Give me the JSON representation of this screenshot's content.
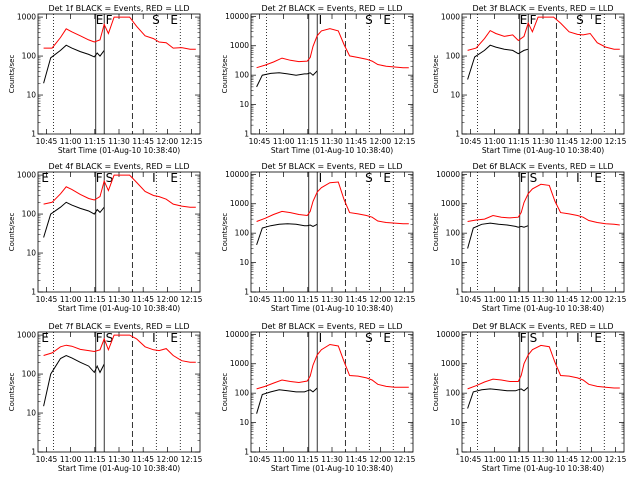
{
  "chart_data": [
    {
      "type": "line",
      "title": "Det 1f BLACK = Events, RED = LLD",
      "xlabel": "Start Time (01-Aug-10 10:38:40)",
      "ylabel": "Counts/sec",
      "xticks": [
        "10:45",
        "11:00",
        "11:15",
        "11:30",
        "11:45",
        "12:00",
        "12:15"
      ],
      "yticks": [
        "1",
        "10",
        "100",
        "1000"
      ],
      "ylim": [
        1,
        1200
      ],
      "yscale": "log",
      "markers": [
        "E",
        "F",
        "S",
        "E"
      ],
      "series": [
        {
          "name": "LLD",
          "color": "#ff0000",
          "x": [
            0.2,
            0.5,
            0.8,
            1.0,
            1.2,
            1.5,
            1.8,
            2.0,
            2.2,
            2.35,
            2.5,
            2.7,
            2.95,
            3.25,
            3.5,
            3.8,
            4.1,
            4.3,
            4.55,
            4.8,
            5.1,
            5.4,
            5.6
          ],
          "y": [
            160,
            160,
            300,
            500,
            420,
            330,
            260,
            230,
            260,
            650,
            380,
            1000,
            1000,
            1000,
            580,
            330,
            280,
            230,
            220,
            160,
            165,
            150,
            150
          ]
        },
        {
          "name": "Events",
          "color": "#000000",
          "x": [
            0.2,
            0.45,
            0.8,
            1.0,
            1.2,
            1.5,
            1.8,
            2.0,
            2.1,
            2.2,
            2.35
          ],
          "y": [
            20,
            90,
            140,
            190,
            160,
            130,
            110,
            95,
            120,
            100,
            140
          ]
        }
      ]
    },
    {
      "type": "line",
      "title": "Det 2f BLACK = Events, RED = LLD",
      "xlabel": "Start Time (01-Aug-10 10:38:40)",
      "ylabel": "Counts/sec",
      "xticks": [
        "10:45",
        "11:00",
        "11:15",
        "11:30",
        "11:45",
        "12:00",
        "12:15"
      ],
      "yticks": [
        "1",
        "10",
        "100",
        "1000",
        "10000"
      ],
      "ylim": [
        1,
        12000
      ],
      "yscale": "log",
      "markers": [
        "I",
        "S",
        "E"
      ],
      "series": [
        {
          "name": "LLD",
          "color": "#ff0000",
          "x": [
            0.2,
            0.5,
            0.8,
            1.1,
            1.4,
            1.7,
            2.0,
            2.1,
            2.2,
            2.35,
            2.5,
            2.8,
            3.1,
            3.3,
            3.5,
            3.8,
            4.1,
            4.3,
            4.5,
            4.8,
            5.1,
            5.4,
            5.6
          ],
          "y": [
            180,
            220,
            280,
            380,
            320,
            290,
            300,
            400,
            950,
            2200,
            3200,
            3800,
            3200,
            1100,
            450,
            400,
            350,
            300,
            230,
            200,
            190,
            180,
            180
          ]
        },
        {
          "name": "Events",
          "color": "#000000",
          "x": [
            0.2,
            0.4,
            0.7,
            1.0,
            1.3,
            1.6,
            1.9,
            2.0,
            2.1,
            2.2,
            2.35
          ],
          "y": [
            40,
            100,
            115,
            120,
            110,
            100,
            110,
            110,
            120,
            100,
            140
          ]
        }
      ]
    },
    {
      "type": "line",
      "title": "Det 3f BLACK = Events, RED = LLD",
      "xlabel": "Start Time (01-Aug-10 10:38:40)",
      "ylabel": "Counts/sec",
      "xticks": [
        "10:45",
        "11:00",
        "11:15",
        "11:30",
        "11:45",
        "12:00",
        "12:15"
      ],
      "yticks": [
        "1",
        "10",
        "100",
        "1000"
      ],
      "ylim": [
        1,
        1200
      ],
      "yscale": "log",
      "markers": [
        "E",
        "F",
        "S",
        "E"
      ],
      "series": [
        {
          "name": "LLD",
          "color": "#ff0000",
          "x": [
            0.2,
            0.5,
            0.8,
            1.0,
            1.2,
            1.5,
            1.8,
            2.0,
            2.2,
            2.35,
            2.5,
            2.7,
            2.95,
            3.25,
            3.5,
            3.8,
            4.1,
            4.3,
            4.55,
            4.8,
            5.1,
            5.4,
            5.6
          ],
          "y": [
            140,
            160,
            280,
            450,
            380,
            320,
            350,
            250,
            320,
            700,
            420,
            1000,
            1000,
            1000,
            700,
            420,
            360,
            350,
            380,
            220,
            170,
            150,
            150
          ]
        },
        {
          "name": "Events",
          "color": "#000000",
          "x": [
            0.2,
            0.45,
            0.8,
            1.0,
            1.2,
            1.5,
            1.8,
            2.0,
            2.2,
            2.35
          ],
          "y": [
            25,
            95,
            140,
            190,
            170,
            150,
            140,
            115,
            140,
            150
          ]
        }
      ]
    },
    {
      "type": "line",
      "title": "Det 4f BLACK = Events, RED = LLD",
      "xlabel": "Start Time (01-Aug-10 10:38:40)",
      "ylabel": "Counts/sec",
      "xticks": [
        "10:45",
        "11:00",
        "11:15",
        "11:30",
        "11:45",
        "12:00",
        "12:15"
      ],
      "yticks": [
        "1",
        "10",
        "100",
        "1000"
      ],
      "ylim": [
        1,
        1200
      ],
      "yscale": "log",
      "markers": [
        "E",
        "F",
        "S",
        "I",
        "E"
      ],
      "series": [
        {
          "name": "LLD",
          "color": "#ff0000",
          "x": [
            0.2,
            0.5,
            0.8,
            1.0,
            1.2,
            1.5,
            1.8,
            2.0,
            2.2,
            2.35,
            2.5,
            2.7,
            2.95,
            3.25,
            3.5,
            3.8,
            4.1,
            4.3,
            4.55,
            4.8,
            5.1,
            5.4,
            5.6
          ],
          "y": [
            180,
            200,
            330,
            500,
            430,
            320,
            250,
            230,
            280,
            700,
            400,
            1000,
            1000,
            1000,
            650,
            380,
            300,
            280,
            240,
            180,
            160,
            150,
            150
          ]
        },
        {
          "name": "Events",
          "color": "#000000",
          "x": [
            0.2,
            0.45,
            0.8,
            1.0,
            1.2,
            1.5,
            1.8,
            2.0,
            2.1,
            2.2,
            2.35
          ],
          "y": [
            25,
            100,
            150,
            200,
            170,
            140,
            120,
            100,
            130,
            110,
            150
          ]
        }
      ]
    },
    {
      "type": "line",
      "title": "Det 5f BLACK = Events, RED = LLD",
      "xlabel": "Start Time (01-Aug-10 10:38:40)",
      "ylabel": "Counts/sec",
      "xticks": [
        "10:45",
        "11:00",
        "11:15",
        "11:30",
        "11:45",
        "12:00",
        "12:15"
      ],
      "yticks": [
        "1",
        "10",
        "100",
        "1000",
        "10000"
      ],
      "ylim": [
        1,
        12000
      ],
      "yscale": "log",
      "markers": [
        "I",
        "S",
        "E"
      ],
      "series": [
        {
          "name": "LLD",
          "color": "#ff0000",
          "x": [
            0.2,
            0.5,
            0.8,
            1.1,
            1.4,
            1.7,
            2.0,
            2.1,
            2.2,
            2.35,
            2.5,
            2.8,
            3.1,
            3.3,
            3.5,
            3.8,
            4.1,
            4.3,
            4.5,
            4.8,
            5.1,
            5.4,
            5.6
          ],
          "y": [
            250,
            320,
            430,
            550,
            500,
            430,
            400,
            550,
            1200,
            2500,
            3500,
            5200,
            5500,
            1400,
            500,
            450,
            400,
            350,
            260,
            230,
            220,
            210,
            210
          ]
        },
        {
          "name": "Events",
          "color": "#000000",
          "x": [
            0.2,
            0.4,
            0.7,
            1.0,
            1.3,
            1.6,
            1.9,
            2.0,
            2.1,
            2.2,
            2.35
          ],
          "y": [
            40,
            150,
            180,
            200,
            210,
            200,
            180,
            180,
            190,
            170,
            200
          ]
        }
      ]
    },
    {
      "type": "line",
      "title": "Det 6f BLACK = Events, RED = LLD",
      "xlabel": "Start Time (01-Aug-10 10:38:40)",
      "ylabel": "Counts/sec",
      "xticks": [
        "10:45",
        "11:00",
        "11:15",
        "11:30",
        "11:45",
        "12:00",
        "12:15"
      ],
      "yticks": [
        "1",
        "10",
        "100",
        "1000",
        "10000"
      ],
      "ylim": [
        1,
        12000
      ],
      "yscale": "log",
      "markers": [
        "F",
        "S",
        "I",
        "E"
      ],
      "series": [
        {
          "name": "LLD",
          "color": "#ff0000",
          "x": [
            0.2,
            0.5,
            0.8,
            1.1,
            1.4,
            1.7,
            2.0,
            2.1,
            2.2,
            2.35,
            2.5,
            2.8,
            3.1,
            3.3,
            3.5,
            3.8,
            4.1,
            4.3,
            4.5,
            4.8,
            5.1,
            5.4,
            5.6
          ],
          "y": [
            250,
            280,
            300,
            400,
            350,
            330,
            350,
            500,
            1100,
            2200,
            3200,
            4600,
            4200,
            1200,
            500,
            450,
            400,
            350,
            270,
            230,
            210,
            200,
            190
          ]
        },
        {
          "name": "Events",
          "color": "#000000",
          "x": [
            0.2,
            0.4,
            0.7,
            1.0,
            1.3,
            1.6,
            1.9,
            2.0,
            2.1,
            2.2,
            2.35
          ],
          "y": [
            30,
            150,
            200,
            220,
            200,
            190,
            170,
            160,
            170,
            160,
            180
          ]
        }
      ]
    },
    {
      "type": "line",
      "title": "Det 7f BLACK = Events, RED = LLD",
      "xlabel": "Start Time (01-Aug-10 10:38:40)",
      "ylabel": "Counts/sec",
      "xticks": [
        "10:45",
        "11:00",
        "11:15",
        "11:30",
        "11:45",
        "12:00",
        "12:15"
      ],
      "yticks": [
        "1",
        "10",
        "100",
        "1000"
      ],
      "ylim": [
        1,
        1200
      ],
      "yscale": "log",
      "markers": [
        "E",
        "F",
        "S",
        "I",
        "E"
      ],
      "series": [
        {
          "name": "LLD",
          "color": "#ff0000",
          "x": [
            0.2,
            0.5,
            0.8,
            1.0,
            1.2,
            1.5,
            1.8,
            2.0,
            2.2,
            2.35,
            2.5,
            2.7,
            2.95,
            3.25,
            3.5,
            3.8,
            4.1,
            4.3,
            4.55,
            4.8,
            5.1,
            5.4,
            5.6
          ],
          "y": [
            300,
            350,
            500,
            550,
            520,
            430,
            400,
            380,
            420,
            800,
            420,
            1000,
            1000,
            1000,
            800,
            500,
            420,
            400,
            450,
            300,
            220,
            200,
            200
          ]
        },
        {
          "name": "Events",
          "color": "#000000",
          "x": [
            0.2,
            0.45,
            0.8,
            1.0,
            1.2,
            1.5,
            1.8,
            2.0,
            2.1,
            2.2,
            2.35
          ],
          "y": [
            15,
            100,
            250,
            300,
            260,
            200,
            160,
            110,
            160,
            110,
            180
          ]
        }
      ]
    },
    {
      "type": "line",
      "title": "Det 8f BLACK = Events, RED = LLD",
      "xlabel": "Start Time (01-Aug-10 10:38:40)",
      "ylabel": "Counts/sec",
      "xticks": [
        "10:45",
        "11:00",
        "11:15",
        "11:30",
        "11:45",
        "12:00",
        "12:15"
      ],
      "yticks": [
        "1",
        "10",
        "100",
        "1000",
        "10000"
      ],
      "ylim": [
        1,
        12000
      ],
      "yscale": "log",
      "markers": [
        "I",
        "S",
        "E"
      ],
      "series": [
        {
          "name": "LLD",
          "color": "#ff0000",
          "x": [
            0.2,
            0.5,
            0.8,
            1.1,
            1.4,
            1.7,
            2.0,
            2.1,
            2.2,
            2.35,
            2.5,
            2.8,
            3.1,
            3.3,
            3.5,
            3.8,
            4.1,
            4.3,
            4.5,
            4.8,
            5.1,
            5.4,
            5.6
          ],
          "y": [
            140,
            170,
            220,
            280,
            250,
            230,
            260,
            380,
            900,
            2000,
            3000,
            4500,
            4000,
            1200,
            400,
            380,
            330,
            280,
            200,
            170,
            160,
            160,
            160
          ]
        },
        {
          "name": "Events",
          "color": "#000000",
          "x": [
            0.2,
            0.4,
            0.7,
            1.0,
            1.3,
            1.6,
            1.9,
            2.0,
            2.1,
            2.2,
            2.35
          ],
          "y": [
            20,
            90,
            110,
            130,
            120,
            110,
            110,
            120,
            130,
            110,
            150
          ]
        }
      ]
    },
    {
      "type": "line",
      "title": "Det 9f BLACK = Events, RED = LLD",
      "xlabel": "Start Time (01-Aug-10 10:38:40)",
      "ylabel": "Counts/sec",
      "xticks": [
        "10:45",
        "11:00",
        "11:15",
        "11:30",
        "11:45",
        "12:00",
        "12:15"
      ],
      "yticks": [
        "1",
        "10",
        "100",
        "1000",
        "10000"
      ],
      "ylim": [
        1,
        12000
      ],
      "yscale": "log",
      "markers": [
        "F",
        "S",
        "I",
        "E"
      ],
      "series": [
        {
          "name": "LLD",
          "color": "#ff0000",
          "x": [
            0.2,
            0.5,
            0.8,
            1.1,
            1.4,
            1.7,
            2.0,
            2.1,
            2.2,
            2.35,
            2.5,
            2.8,
            3.1,
            3.3,
            3.5,
            3.8,
            4.1,
            4.3,
            4.5,
            4.8,
            5.1,
            5.4,
            5.6
          ],
          "y": [
            140,
            180,
            240,
            300,
            280,
            250,
            250,
            400,
            1000,
            2000,
            3000,
            4200,
            3800,
            1100,
            400,
            380,
            330,
            280,
            200,
            170,
            160,
            150,
            150
          ]
        },
        {
          "name": "Events",
          "color": "#000000",
          "x": [
            0.2,
            0.4,
            0.7,
            1.0,
            1.3,
            1.6,
            1.9,
            2.0,
            2.1,
            2.2,
            2.35
          ],
          "y": [
            30,
            110,
            130,
            140,
            130,
            120,
            120,
            130,
            140,
            120,
            160
          ]
        }
      ]
    }
  ]
}
